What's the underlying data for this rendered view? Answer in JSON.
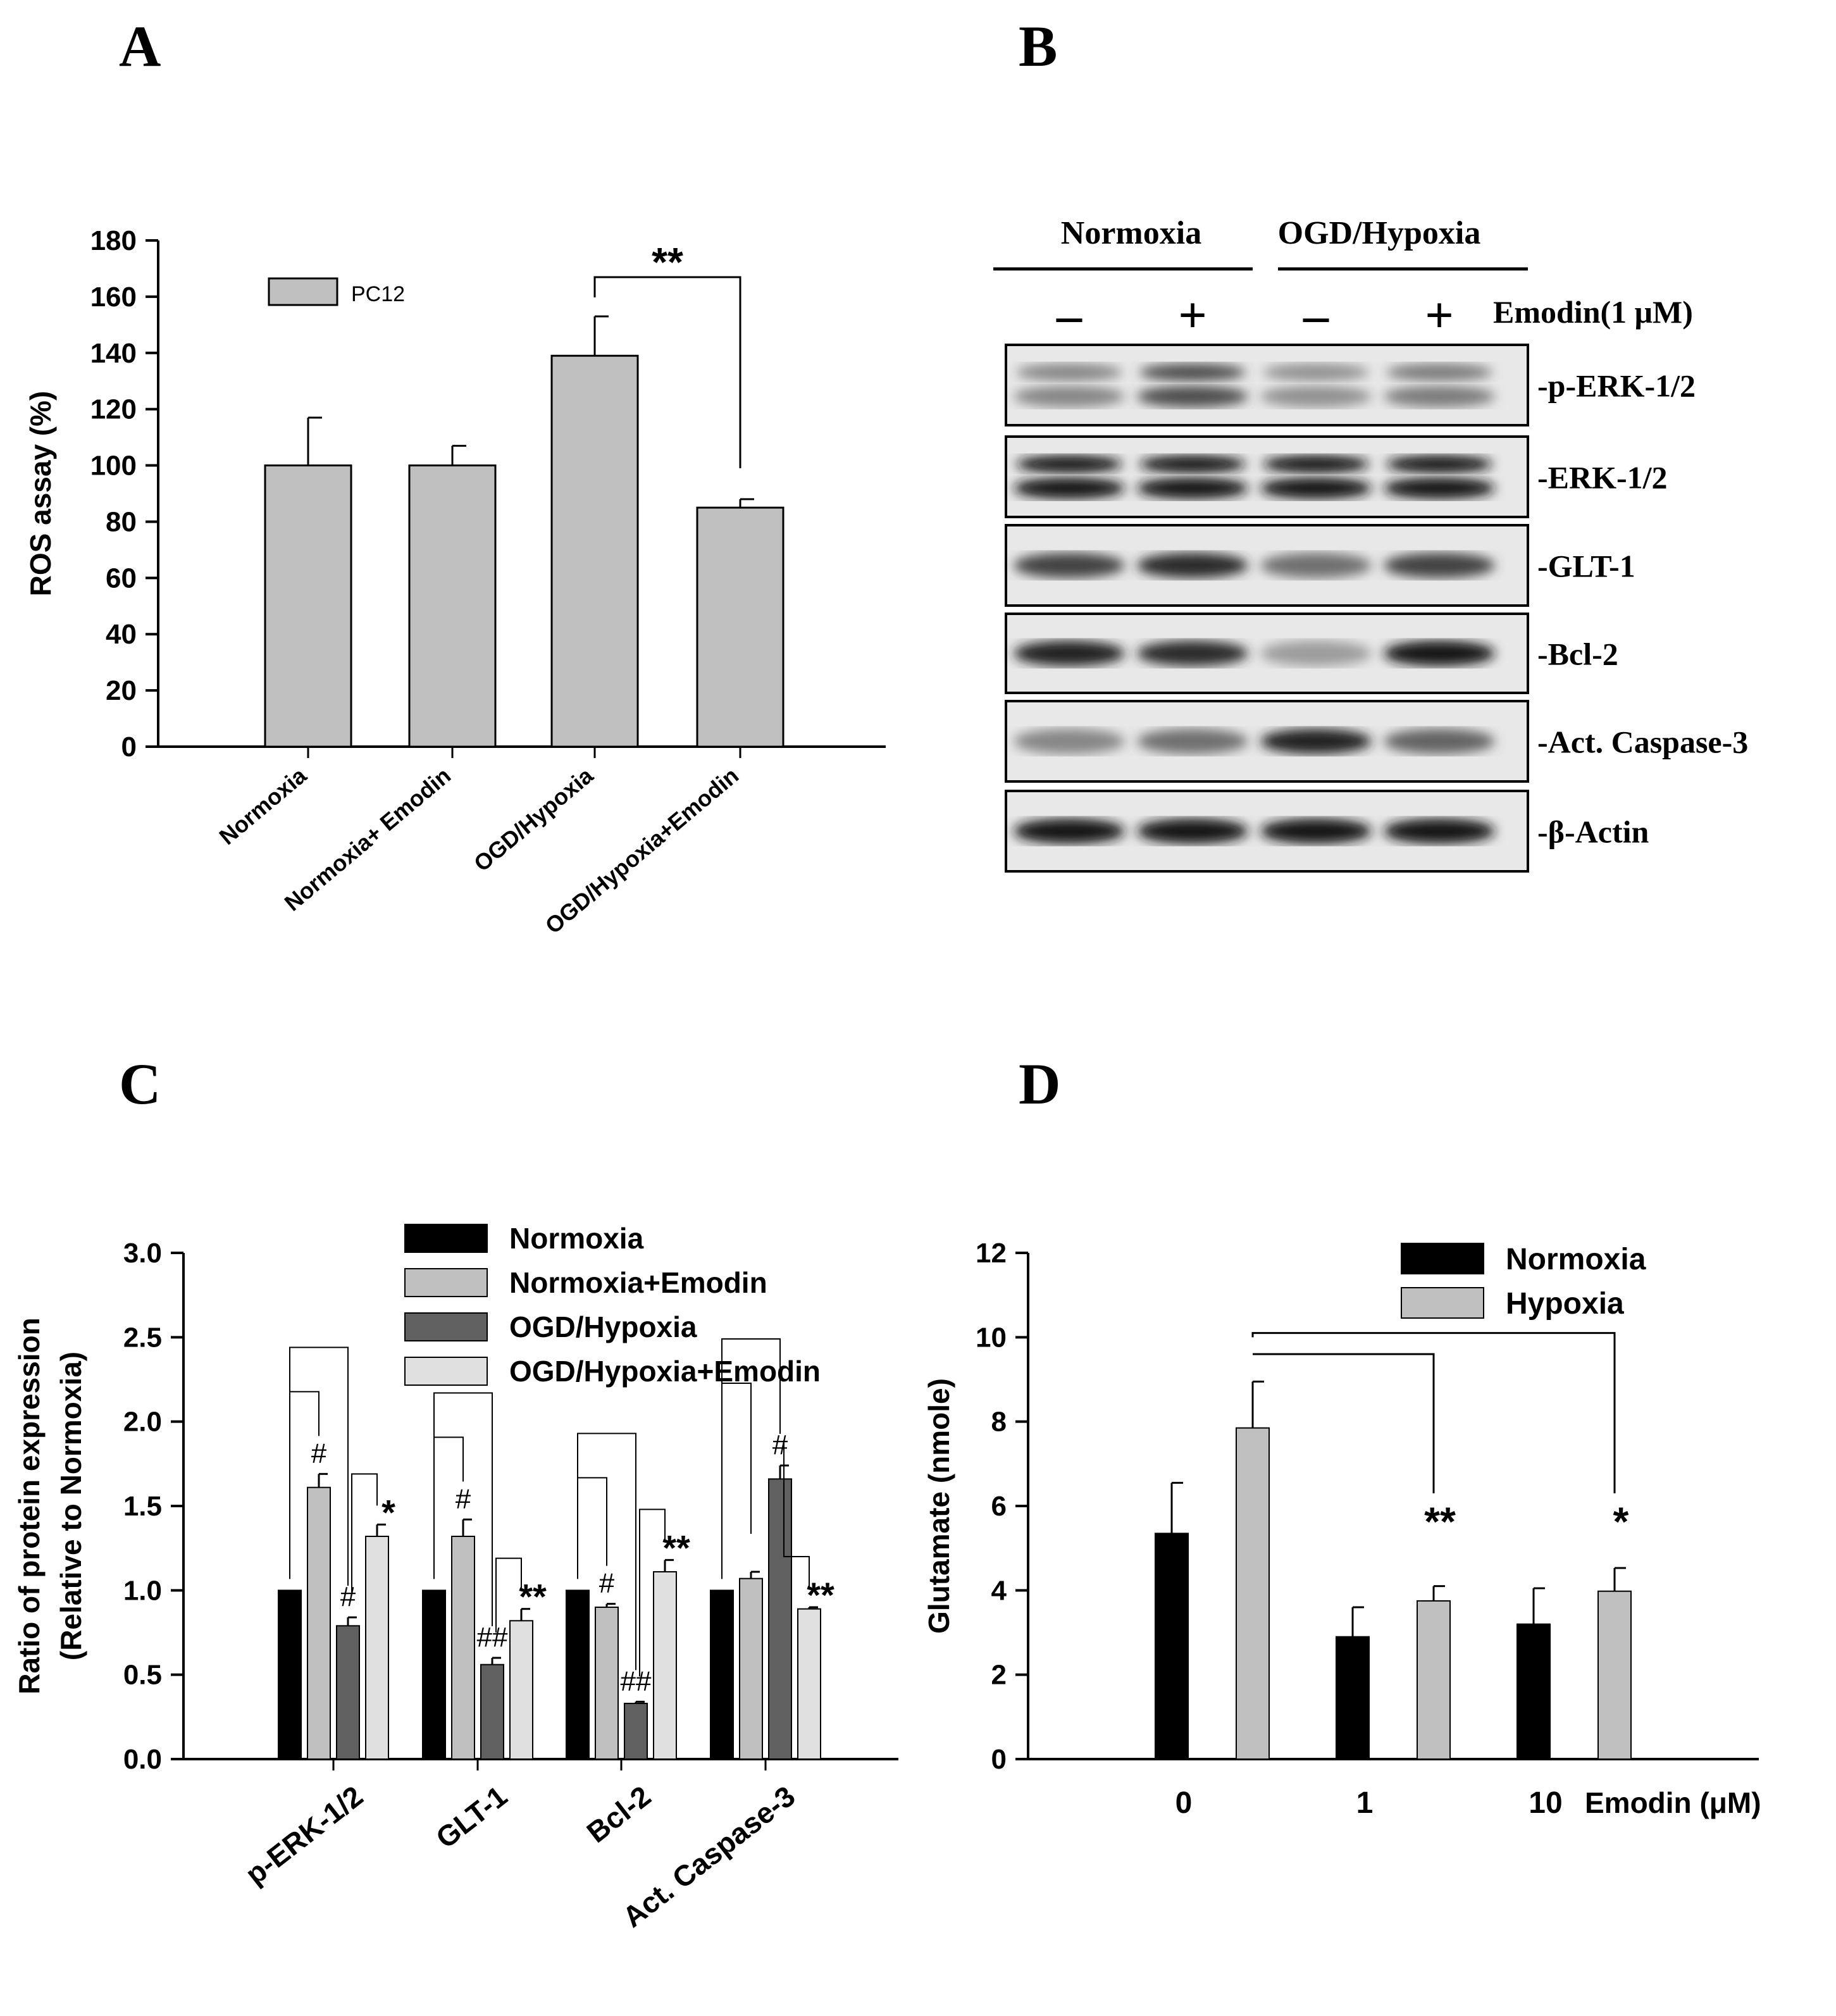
{
  "panel_labels": {
    "a": "A",
    "b": "B",
    "c": "C",
    "d": "D"
  },
  "colors": {
    "light_gray": "#c0c0c0",
    "black": "#000000",
    "dark_gray": "#606060",
    "very_light": "#e0e0e0"
  },
  "chart_data": [
    {
      "panel": "A",
      "type": "bar",
      "ylabel": "ROS assay (%)",
      "ylim": [
        0,
        180
      ],
      "yticks": [
        0,
        20,
        40,
        60,
        80,
        100,
        120,
        140,
        160,
        180
      ],
      "categories": [
        "Normoxia",
        "Normoxia+ Emodin",
        "OGD/Hypoxia",
        "OGD/Hypoxia+Emodin"
      ],
      "series": [
        {
          "name": "PC12",
          "values": [
            100,
            100,
            139,
            85
          ],
          "errors": [
            17,
            7,
            14,
            3
          ],
          "color": "#c0c0c0"
        }
      ],
      "legend": "top-left",
      "annotations": [
        {
          "text": "**",
          "from": 2,
          "to": 3
        }
      ]
    },
    {
      "panel": "B",
      "type": "western_blot",
      "groups": [
        "Normoxia",
        "OGD/Hypoxia"
      ],
      "treatment_label": "Emodin(1 μM)",
      "lane_signs": [
        "–",
        "+",
        "–",
        "+"
      ],
      "rows": [
        {
          "label": "-p-ERK-1/2",
          "intensity": [
            0.45,
            0.7,
            0.4,
            0.5
          ],
          "bands": 2
        },
        {
          "label": "-ERK-1/2",
          "intensity": [
            0.95,
            0.95,
            0.95,
            0.95
          ],
          "bands": 2
        },
        {
          "label": "-GLT-1",
          "intensity": [
            0.75,
            0.85,
            0.55,
            0.75
          ],
          "bands": 1
        },
        {
          "label": "-Bcl-2",
          "intensity": [
            0.9,
            0.85,
            0.35,
            0.95
          ],
          "bands": 1
        },
        {
          "label": "-Act. Caspase-3",
          "intensity": [
            0.45,
            0.55,
            0.9,
            0.6
          ],
          "bands": 1
        },
        {
          "label": "-β-Actin",
          "intensity": [
            0.95,
            0.95,
            0.95,
            0.95
          ],
          "bands": 1
        }
      ]
    },
    {
      "panel": "C",
      "type": "bar",
      "ylabel": "Ratio of protein expression",
      "ylabel2": "(Relative to Normoxia)",
      "ylim": [
        0,
        3.0
      ],
      "yticks": [
        "0.0",
        "0.5",
        "1.0",
        "1.5",
        "2.0",
        "2.5",
        "3.0"
      ],
      "categories": [
        "p-ERK-1/2",
        "GLT-1",
        "Bcl-2",
        "Act. Caspase-3"
      ],
      "series": [
        {
          "name": "Normoxia",
          "values": [
            1.0,
            1.0,
            1.0,
            1.0
          ],
          "errors": [
            0,
            0,
            0,
            0
          ],
          "color": "#000000"
        },
        {
          "name": "Normoxia+Emodin",
          "values": [
            1.61,
            1.32,
            0.9,
            1.07
          ],
          "errors": [
            0.08,
            0.1,
            0.02,
            0.04
          ],
          "color": "#c0c0c0"
        },
        {
          "name": "OGD/Hypoxia",
          "values": [
            0.79,
            0.56,
            0.33,
            1.66
          ],
          "errors": [
            0.05,
            0.04,
            0.01,
            0.08
          ],
          "color": "#606060"
        },
        {
          "name": "OGD/Hypoxia+Emodin",
          "values": [
            1.32,
            0.82,
            1.11,
            0.89
          ],
          "errors": [
            0.07,
            0.07,
            0.07,
            0.01
          ],
          "color": "#e0e0e0"
        }
      ],
      "legend": "top-right",
      "marks": [
        {
          "text": "#",
          "cat": 0,
          "bar": 1
        },
        {
          "text": "#",
          "cat": 0,
          "bar": 2
        },
        {
          "text": "*",
          "cat": 0,
          "bar": 3
        },
        {
          "text": "#",
          "cat": 1,
          "bar": 1
        },
        {
          "text": "##",
          "cat": 1,
          "bar": 2
        },
        {
          "text": "**",
          "cat": 1,
          "bar": 3
        },
        {
          "text": "#",
          "cat": 2,
          "bar": 1
        },
        {
          "text": "##",
          "cat": 2,
          "bar": 2
        },
        {
          "text": "**",
          "cat": 2,
          "bar": 3
        },
        {
          "text": "#",
          "cat": 3,
          "bar": 2
        },
        {
          "text": "**",
          "cat": 3,
          "bar": 3
        }
      ]
    },
    {
      "panel": "D",
      "type": "bar",
      "ylabel": "Glutamate (nmole)",
      "ylim": [
        0,
        12
      ],
      "yticks": [
        0,
        2,
        4,
        6,
        8,
        10,
        12
      ],
      "categories": [
        "0",
        "1",
        "10"
      ],
      "xlabel": "Emodin (μM)",
      "series": [
        {
          "name": "Normoxia",
          "values": [
            5.35,
            2.9,
            3.2
          ],
          "errors": [
            1.2,
            0.7,
            0.85
          ],
          "color": "#000000"
        },
        {
          "name": "Hypoxia",
          "values": [
            7.85,
            3.75,
            3.98
          ],
          "errors": [
            1.1,
            0.35,
            0.55
          ],
          "color": "#c0c0c0"
        }
      ],
      "legend": "top-right",
      "annotations": [
        {
          "text": "**",
          "cat": 1
        },
        {
          "text": "*",
          "cat": 2
        }
      ]
    }
  ]
}
